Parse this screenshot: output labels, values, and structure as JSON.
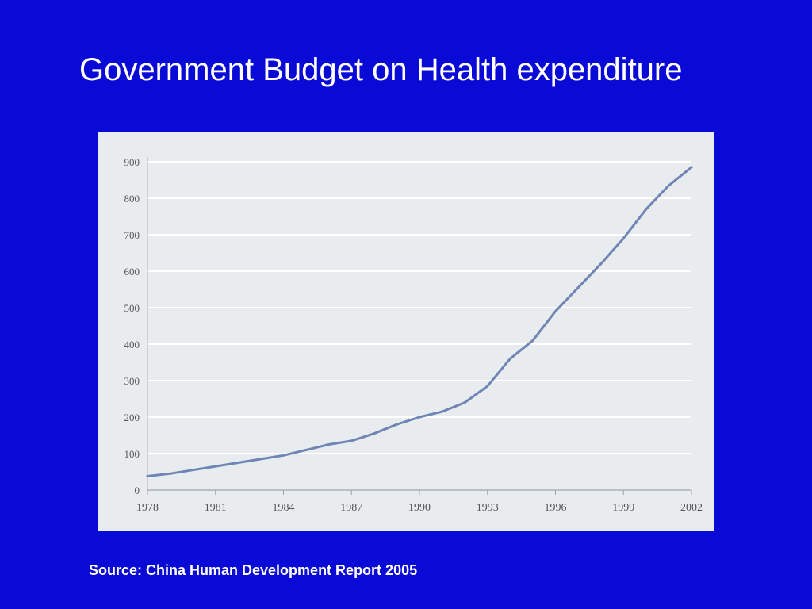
{
  "title": "Government Budget on Health expenditure",
  "source": "Source: China Human Development Report 2005",
  "colors": {
    "background": "#0a0ad6",
    "panel": "#e9ecef",
    "line": "#6f86b4",
    "text": "#ffffff",
    "axis_text": "#555555"
  },
  "chart_data": {
    "type": "line",
    "title": "",
    "xlabel": "",
    "ylabel": "",
    "grid": true,
    "xlim": [
      1978,
      2002
    ],
    "ylim": [
      0,
      900
    ],
    "x_ticks": [
      "1978",
      "1981",
      "1984",
      "1987",
      "1990",
      "1993",
      "1996",
      "1999",
      "2002"
    ],
    "y_ticks": [
      "0",
      "100",
      "200",
      "300",
      "400",
      "500",
      "600",
      "700",
      "800",
      "900"
    ],
    "series": [
      {
        "x": [
          1978,
          1979,
          1980,
          1981,
          1982,
          1983,
          1984,
          1985,
          1986,
          1987,
          1988,
          1989,
          1990,
          1991,
          1992,
          1993,
          1994,
          1995,
          1996,
          1997,
          1998,
          1999,
          2000,
          2001,
          2002
        ],
        "values": [
          38,
          45,
          55,
          65,
          75,
          85,
          95,
          110,
          125,
          135,
          155,
          180,
          200,
          215,
          240,
          285,
          360,
          410,
          490,
          555,
          620,
          690,
          770,
          835,
          885
        ]
      }
    ]
  }
}
